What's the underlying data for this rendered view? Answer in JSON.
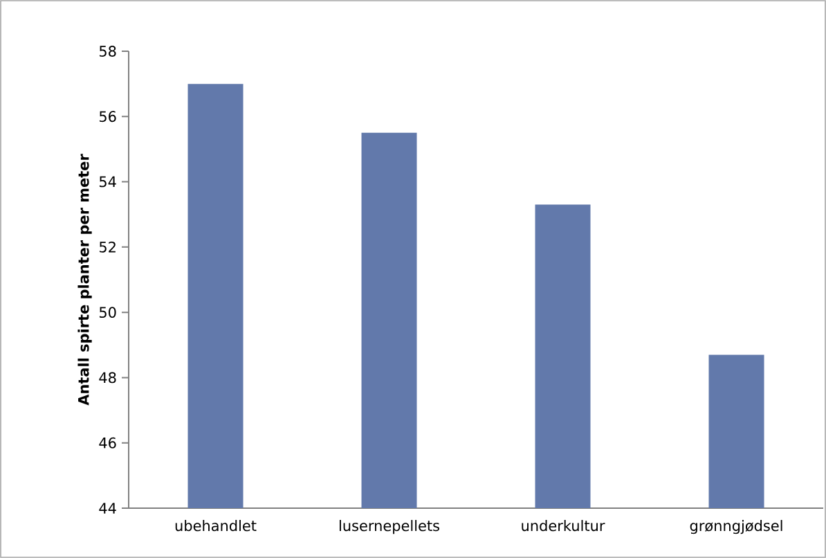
{
  "chart_data": {
    "type": "bar",
    "ylabel": "Antall spirte planter per meter",
    "categories": [
      "ubehandlet",
      "lusernepellets",
      "underkultur",
      "grønngjødsel"
    ],
    "values": [
      57.0,
      55.5,
      53.3,
      48.7
    ],
    "color": "#6279ab",
    "ylim": [
      44,
      58
    ],
    "yticks": [
      44,
      46,
      48,
      50,
      52,
      54,
      56,
      58
    ],
    "grid": false
  }
}
